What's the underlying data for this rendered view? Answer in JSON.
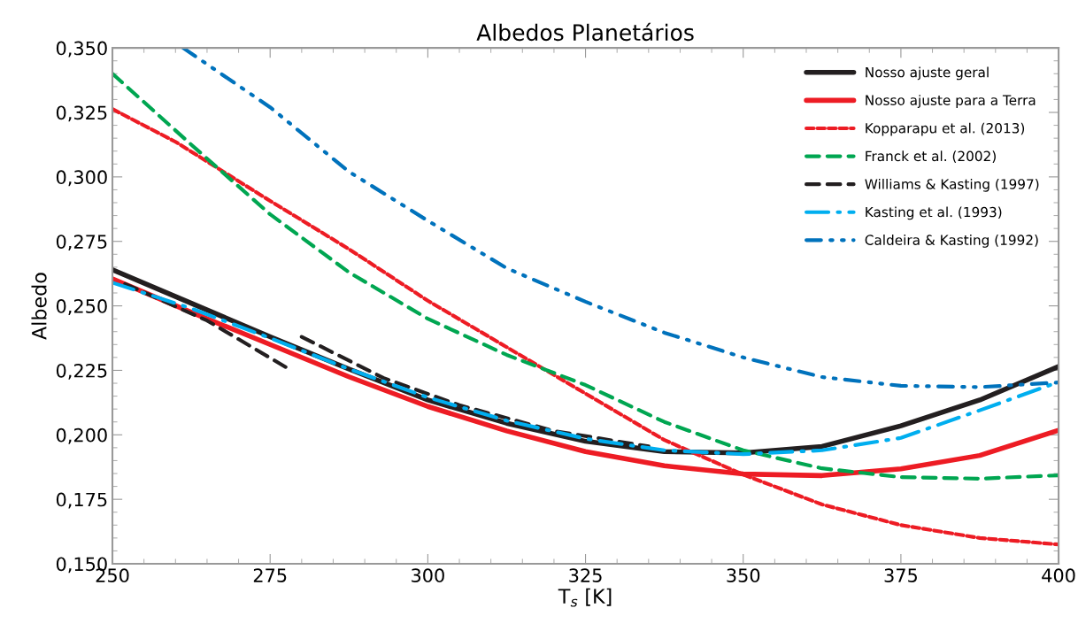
{
  "chart_data": {
    "type": "line",
    "title": "Albedos Planetários",
    "xlabel": "T$_{s}$ [K]",
    "ylabel": "Albedo",
    "xlim": [
      250,
      400
    ],
    "xticks": [
      250,
      275,
      300,
      325,
      350,
      375,
      400
    ],
    "ylim": [
      0.15,
      0.35
    ],
    "yticks": [
      {
        "value": 0.15,
        "label": "0,150"
      },
      {
        "value": 0.175,
        "label": "0,175"
      },
      {
        "value": 0.2,
        "label": "0,200"
      },
      {
        "value": 0.225,
        "label": "0,225"
      },
      {
        "value": 0.25,
        "label": "0,250"
      },
      {
        "value": 0.275,
        "label": "0,275"
      },
      {
        "value": 0.3,
        "label": "0,300"
      },
      {
        "value": 0.325,
        "label": "0,325"
      },
      {
        "value": 0.35,
        "label": "0,350"
      }
    ],
    "grid": false,
    "legend": "top right",
    "marker": "none",
    "series": [
      {
        "name": "Nosso ajuste geral",
        "color": "#231f20",
        "line_style": "solid",
        "x": [
          250,
          262.5,
          275,
          287.5,
          300,
          312.5,
          325,
          337.5,
          350,
          362.5,
          375,
          387.5,
          400
        ],
        "values": [
          0.264,
          0.251,
          0.238,
          0.2255,
          0.2135,
          0.2045,
          0.1975,
          0.1935,
          0.193,
          0.1955,
          0.2035,
          0.2135,
          0.2265
        ]
      },
      {
        "name": "Nosso ajuste para a Terra",
        "color": "#ed1c24",
        "line_style": "solid",
        "x": [
          250,
          262.5,
          275,
          287.5,
          300,
          312.5,
          325,
          337.5,
          350,
          362.5,
          375,
          387.5,
          400
        ],
        "values": [
          0.2605,
          0.2475,
          0.235,
          0.2225,
          0.211,
          0.2015,
          0.1935,
          0.188,
          0.1848,
          0.1842,
          0.1868,
          0.192,
          0.2018
        ]
      },
      {
        "name": "Kopparapu et al. (2013)",
        "color": "#ed1c24",
        "line_style": "dotted",
        "x": [
          250,
          260,
          275,
          287.5,
          300,
          312.5,
          325,
          337.5,
          350,
          362.5,
          375,
          387.5,
          400
        ],
        "values": [
          0.3263,
          0.3136,
          0.2907,
          0.272,
          0.252,
          0.234,
          0.216,
          0.198,
          0.1846,
          0.173,
          0.165,
          0.16,
          0.1575
        ]
      },
      {
        "name": "Franck et al. (2002)",
        "color": "#00a651",
        "line_style": "dashed",
        "x": [
          250,
          262.5,
          275,
          287.5,
          300,
          312.5,
          325,
          337.5,
          350,
          362.5,
          375,
          387.5,
          400
        ],
        "values": [
          0.34,
          0.3125,
          0.2855,
          0.263,
          0.245,
          0.231,
          0.2193,
          0.205,
          0.194,
          0.187,
          0.1836,
          0.183,
          0.1843
        ]
      },
      {
        "name": "Williams & Kasting (1997)",
        "color": "#231f20",
        "line_style": "dashed",
        "x": [
          252,
          265,
          278,
          279,
          280,
          293,
          305,
          320,
          335
        ],
        "values": [
          0.2585,
          0.2443,
          0.2255,
          null,
          0.238,
          0.222,
          0.2115,
          0.2015,
          0.1955
        ]
      },
      {
        "name": "Kasting et al. (1993)",
        "color": "#00aeef",
        "line_style": "dashdot",
        "x": [
          250,
          262.5,
          275,
          287.5,
          300,
          312.5,
          325,
          337.5,
          350,
          362.5,
          375,
          387.5,
          400
        ],
        "values": [
          0.259,
          0.249,
          0.2375,
          0.2255,
          0.2145,
          0.2055,
          0.1985,
          0.194,
          0.1925,
          0.194,
          0.1988,
          0.2095,
          0.2205
        ]
      },
      {
        "name": "Caldeira & Kasting (1992)",
        "color": "#0072bc",
        "line_style": "dashdotdot",
        "x": [
          261.2,
          275,
          287.5,
          300,
          312.5,
          325,
          337.5,
          350,
          362.5,
          375,
          387.5,
          400
        ],
        "values": [
          0.35,
          0.327,
          0.302,
          0.283,
          0.2646,
          0.2516,
          0.2396,
          0.23,
          0.2224,
          0.219,
          0.2185,
          0.2203
        ]
      }
    ]
  }
}
